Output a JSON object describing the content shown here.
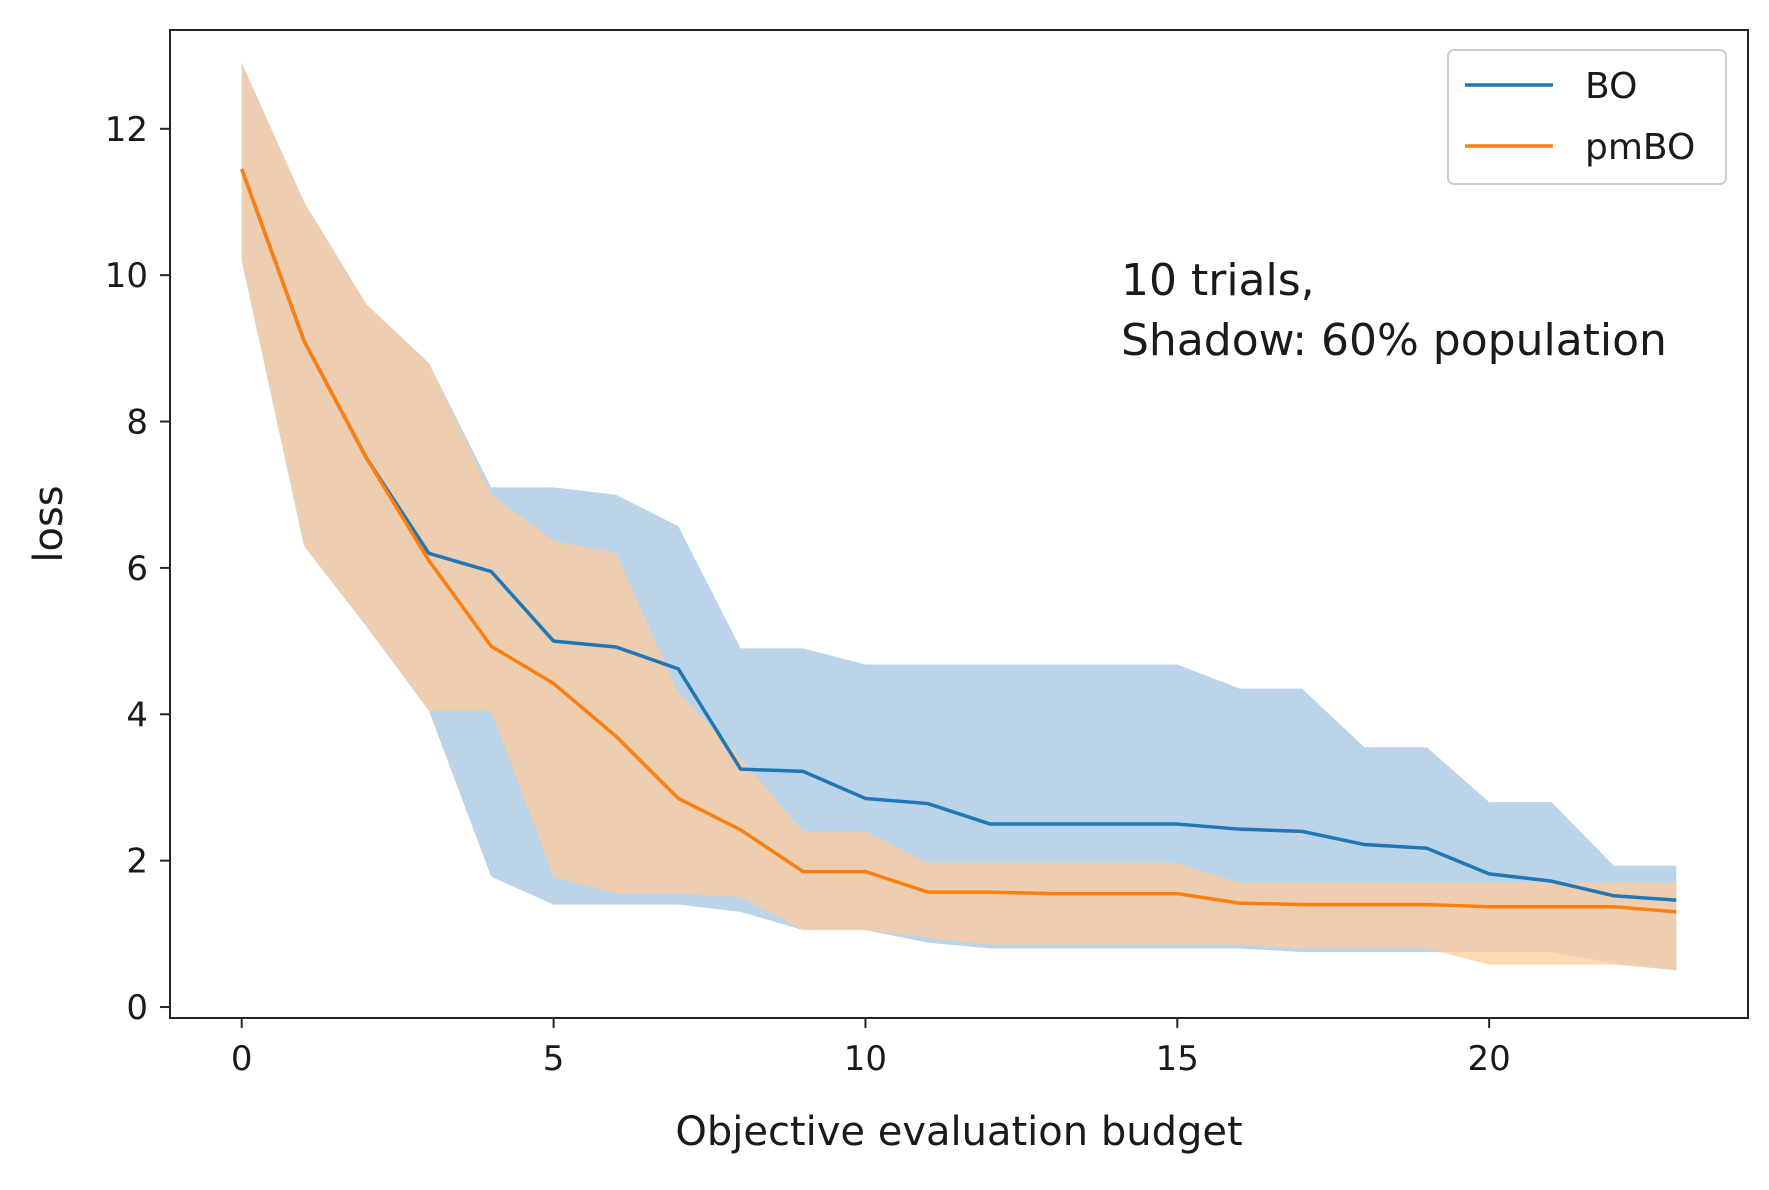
{
  "chart_data": {
    "type": "line",
    "title": "",
    "xlabel": "Objective evaluation budget",
    "ylabel": "loss",
    "xlim": [
      -1.15,
      24.15
    ],
    "ylim": [
      -0.15,
      13.35
    ],
    "xticks": [
      0,
      5,
      10,
      15,
      20
    ],
    "yticks": [
      0,
      2,
      4,
      6,
      8,
      10,
      12
    ],
    "grid": false,
    "legend": {
      "position": "top-right"
    },
    "annotation": [
      "10 trials,",
      "Shadow: 60% population"
    ],
    "x": [
      0,
      1,
      2,
      3,
      4,
      5,
      6,
      7,
      8,
      9,
      10,
      11,
      12,
      13,
      14,
      15,
      16,
      17,
      18,
      19,
      20,
      21,
      22,
      23
    ],
    "series": [
      {
        "name": "BO",
        "color": "#1f77b4",
        "band_color": "#a5c6e1",
        "values": [
          11.45,
          9.1,
          7.5,
          6.2,
          5.95,
          5.0,
          4.92,
          4.62,
          3.25,
          3.22,
          2.85,
          2.78,
          2.5,
          2.5,
          2.5,
          2.5,
          2.43,
          2.4,
          2.22,
          2.17,
          1.82,
          1.72,
          1.52,
          1.46
        ],
        "band_upper": [
          12.9,
          11.0,
          9.6,
          8.8,
          7.1,
          7.1,
          7.0,
          6.57,
          4.9,
          4.9,
          4.68,
          4.68,
          4.68,
          4.68,
          4.68,
          4.68,
          4.35,
          4.35,
          3.55,
          3.55,
          2.8,
          2.8,
          1.93,
          1.93
        ],
        "band_lower": [
          10.2,
          6.3,
          5.2,
          4.05,
          1.78,
          1.4,
          1.4,
          1.4,
          1.3,
          1.05,
          1.05,
          0.88,
          0.8,
          0.8,
          0.8,
          0.8,
          0.8,
          0.75,
          0.75,
          0.75,
          0.75,
          0.75,
          0.6,
          0.5
        ]
      },
      {
        "name": "pmBO",
        "color": "#ff7f0e",
        "band_color": "#ffcc9e",
        "values": [
          11.45,
          9.1,
          7.5,
          6.1,
          4.93,
          4.42,
          3.7,
          2.85,
          2.42,
          1.85,
          1.85,
          1.57,
          1.57,
          1.55,
          1.55,
          1.55,
          1.42,
          1.4,
          1.4,
          1.4,
          1.37,
          1.37,
          1.37,
          1.3
        ],
        "band_upper": [
          12.9,
          11.0,
          9.6,
          8.8,
          7.0,
          6.37,
          6.2,
          4.3,
          3.4,
          2.4,
          2.4,
          1.97,
          1.97,
          1.97,
          1.97,
          1.97,
          1.7,
          1.7,
          1.7,
          1.7,
          1.7,
          1.7,
          1.7,
          1.7
        ],
        "band_lower": [
          10.2,
          6.3,
          5.2,
          4.05,
          4.05,
          1.78,
          1.55,
          1.55,
          1.5,
          1.05,
          1.05,
          0.95,
          0.85,
          0.85,
          0.85,
          0.85,
          0.85,
          0.8,
          0.8,
          0.8,
          0.58,
          0.58,
          0.58,
          0.5
        ]
      }
    ]
  }
}
